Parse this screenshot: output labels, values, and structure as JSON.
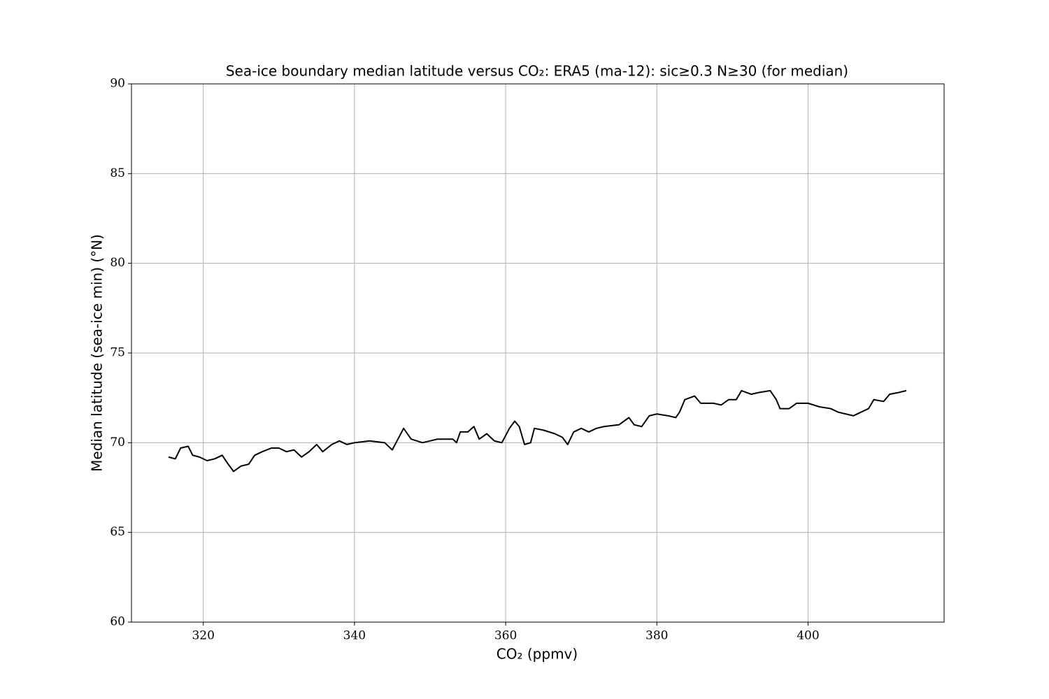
{
  "chart_data": {
    "type": "line",
    "title": "Sea-ice boundary median latitude versus CO₂: ERA5 (ma-12): sic≥0.3 N≥30 (for median)",
    "x_label": "CO₂ (ppmv)",
    "y_label": "Median latitude (sea-ice min) (°N)",
    "x": [
      315.4,
      316.3,
      317.0,
      318.0,
      318.6,
      319.5,
      320.5,
      321.5,
      322.5,
      323.3,
      324.0,
      325.0,
      326.0,
      326.8,
      327.8,
      329.0,
      330.0,
      331.0,
      332.0,
      333.0,
      334.0,
      335.0,
      335.8,
      337.0,
      338.0,
      339.0,
      340.0,
      342.0,
      344.0,
      345.0,
      346.0,
      346.5,
      347.5,
      349.0,
      351.0,
      353.0,
      353.5,
      354.0,
      355.0,
      355.8,
      356.5,
      357.5,
      358.5,
      359.5,
      360.5,
      361.2,
      361.8,
      362.5,
      363.3,
      363.8,
      365.0,
      366.5,
      367.5,
      368.2,
      369.0,
      370.0,
      371.0,
      372.0,
      373.0,
      375.0,
      376.3,
      377.0,
      378.0,
      379.0,
      380.0,
      381.5,
      382.5,
      383.0,
      383.7,
      385.0,
      385.8,
      387.5,
      388.5,
      389.5,
      390.5,
      391.2,
      392.5,
      393.5,
      395.0,
      395.8,
      396.3,
      397.5,
      398.5,
      400.0,
      401.5,
      403.0,
      404.0,
      405.0,
      406.0,
      407.0,
      408.0,
      408.7,
      410.0,
      410.8,
      412.0,
      413.0
    ],
    "series": [
      {
        "color": "#000000",
        "values": [
          69.2,
          69.1,
          69.7,
          69.8,
          69.3,
          69.2,
          69.0,
          69.1,
          69.3,
          68.8,
          68.4,
          68.7,
          68.8,
          69.3,
          69.5,
          69.7,
          69.7,
          69.5,
          69.6,
          69.2,
          69.5,
          69.9,
          69.5,
          69.9,
          70.1,
          69.9,
          70.0,
          70.1,
          70.0,
          69.6,
          70.4,
          70.8,
          70.2,
          70.0,
          70.2,
          70.2,
          70.0,
          70.6,
          70.6,
          70.9,
          70.2,
          70.5,
          70.1,
          70.0,
          70.8,
          71.2,
          70.9,
          69.9,
          70.0,
          70.8,
          70.7,
          70.5,
          70.3,
          69.9,
          70.6,
          70.8,
          70.6,
          70.8,
          70.9,
          71.0,
          71.4,
          71.0,
          70.9,
          71.5,
          71.6,
          71.5,
          71.4,
          71.7,
          72.4,
          72.6,
          72.2,
          72.2,
          72.1,
          72.4,
          72.4,
          72.9,
          72.7,
          72.8,
          72.9,
          72.4,
          71.9,
          71.9,
          72.2,
          72.2,
          72.0,
          71.9,
          71.7,
          71.6,
          71.5,
          71.7,
          71.9,
          72.4,
          72.3,
          72.7,
          72.8,
          72.9
        ]
      }
    ],
    "xlim": [
      310.5,
      418.0
    ],
    "xticks": [
      320,
      340,
      360,
      380,
      400
    ],
    "ylim": [
      60,
      90
    ],
    "yticks": [
      60,
      65,
      70,
      75,
      80,
      85,
      90
    ],
    "grid": true
  }
}
